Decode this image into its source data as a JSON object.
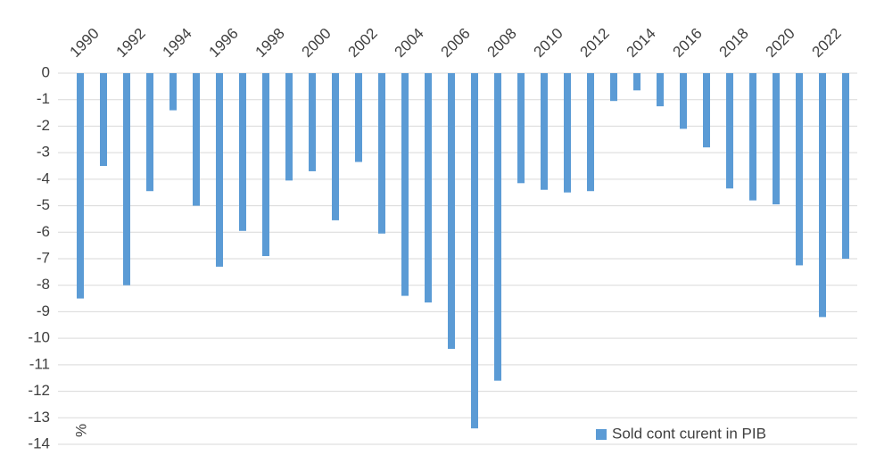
{
  "chart_data": {
    "type": "bar",
    "categories": [
      "1990",
      null,
      "1992",
      null,
      "1994",
      null,
      "1996",
      null,
      "1998",
      null,
      "2000",
      null,
      "2002",
      null,
      "2004",
      null,
      "2006",
      null,
      "2008",
      null,
      "2010",
      null,
      "2012",
      null,
      "2014",
      null,
      "2016",
      null,
      "2018",
      null,
      "2020",
      null,
      "2022",
      null
    ],
    "series": [
      {
        "name": "Sold cont curent in PIB",
        "color": "#5b9bd5",
        "values": [
          -8.5,
          -3.5,
          -8.0,
          -4.45,
          -1.4,
          -5.0,
          -7.3,
          -5.95,
          -6.9,
          -4.05,
          -3.7,
          -5.55,
          -3.35,
          -6.05,
          -8.4,
          -8.65,
          -10.4,
          -13.4,
          -11.6,
          -4.15,
          -4.4,
          -4.5,
          -4.45,
          -1.05,
          -0.65,
          -1.25,
          -2.1,
          -2.8,
          -4.35,
          -4.8,
          -4.95,
          -7.25,
          -9.2,
          -7.0
        ]
      }
    ],
    "y_label": "%",
    "ylim": [
      -14,
      0
    ],
    "yticks": [
      0,
      -1,
      -2,
      -3,
      -4,
      -5,
      -6,
      -7,
      -8,
      -9,
      -10,
      -11,
      -12,
      -13,
      -14
    ],
    "grid": true,
    "legend": "lower right"
  }
}
